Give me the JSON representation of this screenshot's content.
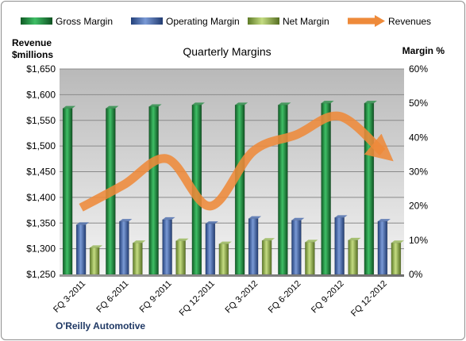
{
  "chart_data": {
    "type": "bar",
    "title": "Quarterly Margins",
    "categories": [
      "FQ 3-2011",
      "FQ 6-2011",
      "FQ 9-2011",
      "FQ 12-2011",
      "FQ 3-2012",
      "FQ 6-2012",
      "FQ 9-2012",
      "FQ 12-2012"
    ],
    "series": [
      {
        "name": "Gross Margin",
        "type": "bar",
        "axis": "right",
        "color": "#1e8a3e",
        "values": [
          48.5,
          48.5,
          49.0,
          49.5,
          49.5,
          49.5,
          50.0,
          50.0
        ]
      },
      {
        "name": "Operating Margin",
        "type": "bar",
        "axis": "right",
        "color": "#3d62a8",
        "values": [
          14.5,
          15.5,
          16.0,
          14.8,
          16.3,
          15.8,
          16.6,
          15.5
        ]
      },
      {
        "name": "Net Margin",
        "type": "bar",
        "axis": "right",
        "color": "#8fb24a",
        "values": [
          7.8,
          9.2,
          9.8,
          8.9,
          9.9,
          9.4,
          10.0,
          9.2
        ]
      },
      {
        "name": "Revenues",
        "type": "line",
        "axis": "left",
        "color": "#ee8a3a",
        "values": [
          1380,
          1425,
          1475,
          1383,
          1490,
          1522,
          1558,
          1488
        ]
      }
    ],
    "y_left": {
      "label_line1": "Revenue",
      "label_line2": "$millions",
      "min": 1250,
      "max": 1650,
      "step": 50,
      "tick_prefix": "$"
    },
    "y_right": {
      "label": "Margin %",
      "min": 0,
      "max": 60,
      "step": 10,
      "tick_suffix": "%"
    },
    "legend_position": "top",
    "grid": true,
    "source_label": "O'Reilly Automotive"
  }
}
